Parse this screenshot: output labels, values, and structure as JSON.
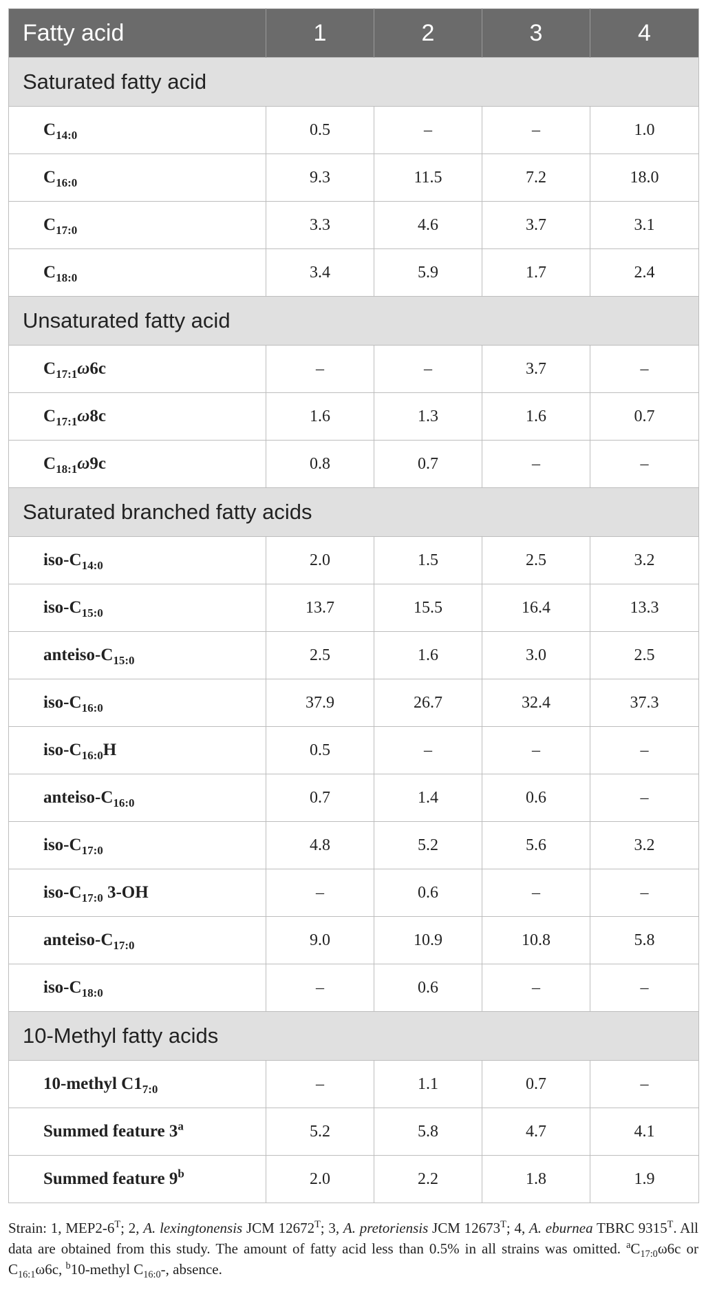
{
  "table": {
    "header": [
      "Fatty acid",
      "1",
      "2",
      "3",
      "4"
    ],
    "sections": [
      {
        "title": "Saturated fatty acid",
        "rows": [
          {
            "name": [
              {
                "t": "C"
              },
              {
                "t": "14:0",
                "s": "sub"
              }
            ],
            "values": [
              "0.5",
              "–",
              "–",
              "1.0"
            ]
          },
          {
            "name": [
              {
                "t": "C"
              },
              {
                "t": "16:0",
                "s": "sub"
              }
            ],
            "values": [
              "9.3",
              "11.5",
              "7.2",
              "18.0"
            ]
          },
          {
            "name": [
              {
                "t": "C"
              },
              {
                "t": "17:0",
                "s": "sub"
              }
            ],
            "values": [
              "3.3",
              "4.6",
              "3.7",
              "3.1"
            ]
          },
          {
            "name": [
              {
                "t": "C"
              },
              {
                "t": "18:0",
                "s": "sub"
              }
            ],
            "values": [
              "3.4",
              "5.9",
              "1.7",
              "2.4"
            ]
          }
        ]
      },
      {
        "title": "Unsaturated fatty acid",
        "rows": [
          {
            "name": [
              {
                "t": "C"
              },
              {
                "t": "17:1",
                "s": "sub"
              },
              {
                "t": "ω",
                "s": "i"
              },
              {
                "t": "6c"
              }
            ],
            "values": [
              "–",
              "–",
              "3.7",
              "–"
            ]
          },
          {
            "name": [
              {
                "t": "C"
              },
              {
                "t": "17:1",
                "s": "sub"
              },
              {
                "t": "ω",
                "s": "i"
              },
              {
                "t": "8c"
              }
            ],
            "values": [
              "1.6",
              "1.3",
              "1.6",
              "0.7"
            ]
          },
          {
            "name": [
              {
                "t": "C"
              },
              {
                "t": "18:1",
                "s": "sub"
              },
              {
                "t": "ω",
                "s": "i"
              },
              {
                "t": "9c"
              }
            ],
            "values": [
              "0.8",
              "0.7",
              "–",
              "–"
            ]
          }
        ]
      },
      {
        "title": "Saturated branched fatty acids",
        "rows": [
          {
            "name": [
              {
                "t": "iso-C"
              },
              {
                "t": "14:0",
                "s": "sub"
              }
            ],
            "values": [
              "2.0",
              "1.5",
              "2.5",
              "3.2"
            ]
          },
          {
            "name": [
              {
                "t": "iso-C"
              },
              {
                "t": "15:0",
                "s": "sub"
              }
            ],
            "values": [
              "13.7",
              "15.5",
              "16.4",
              "13.3"
            ]
          },
          {
            "name": [
              {
                "t": "anteiso-C"
              },
              {
                "t": "15:0",
                "s": "sub"
              }
            ],
            "values": [
              "2.5",
              "1.6",
              "3.0",
              "2.5"
            ]
          },
          {
            "name": [
              {
                "t": "iso-C"
              },
              {
                "t": "16:0",
                "s": "sub"
              }
            ],
            "values": [
              "37.9",
              "26.7",
              "32.4",
              "37.3"
            ]
          },
          {
            "name": [
              {
                "t": "iso-C"
              },
              {
                "t": "16:0",
                "s": "sub"
              },
              {
                "t": "H"
              }
            ],
            "values": [
              "0.5",
              "–",
              "–",
              "–"
            ]
          },
          {
            "name": [
              {
                "t": "anteiso-C"
              },
              {
                "t": "16:0",
                "s": "sub"
              }
            ],
            "values": [
              "0.7",
              "1.4",
              "0.6",
              "–"
            ]
          },
          {
            "name": [
              {
                "t": "iso-C"
              },
              {
                "t": "17:0",
                "s": "sub"
              }
            ],
            "values": [
              "4.8",
              "5.2",
              "5.6",
              "3.2"
            ]
          },
          {
            "name": [
              {
                "t": "iso-C"
              },
              {
                "t": "17:0",
                "s": "sub"
              },
              {
                "t": " 3-OH"
              }
            ],
            "values": [
              "–",
              "0.6",
              "–",
              "–"
            ]
          },
          {
            "name": [
              {
                "t": "anteiso-C"
              },
              {
                "t": "17:0",
                "s": "sub"
              }
            ],
            "values": [
              "9.0",
              "10.9",
              "10.8",
              "5.8"
            ]
          },
          {
            "name": [
              {
                "t": "iso-C"
              },
              {
                "t": "18:0",
                "s": "sub"
              }
            ],
            "values": [
              "–",
              "0.6",
              "–",
              "–"
            ]
          }
        ]
      },
      {
        "title": "10-Methyl fatty acids",
        "rows": [
          {
            "name": [
              {
                "t": "10-methyl C1"
              },
              {
                "t": "7:0",
                "s": "sub"
              }
            ],
            "values": [
              "–",
              "1.1",
              "0.7",
              "–"
            ]
          },
          {
            "name": [
              {
                "t": "Summed feature 3"
              },
              {
                "t": "a",
                "s": "sup"
              }
            ],
            "values": [
              "5.2",
              "5.8",
              "4.7",
              "4.1"
            ]
          },
          {
            "name": [
              {
                "t": "Summed feature 9"
              },
              {
                "t": "b",
                "s": "sup"
              }
            ],
            "values": [
              "2.0",
              "2.2",
              "1.8",
              "1.9"
            ]
          }
        ]
      }
    ]
  },
  "footnote": [
    {
      "t": "Strain: 1, MEP2-6"
    },
    {
      "t": "T",
      "s": "sup"
    },
    {
      "t": "; 2, "
    },
    {
      "t": "A. lexingtonensis",
      "s": "i"
    },
    {
      "t": " JCM 12672"
    },
    {
      "t": "T",
      "s": "sup"
    },
    {
      "t": "; 3, "
    },
    {
      "t": "A. pretoriensis",
      "s": "i"
    },
    {
      "t": " JCM 12673"
    },
    {
      "t": "T",
      "s": "sup"
    },
    {
      "t": "; 4, "
    },
    {
      "t": "A. eburnea",
      "s": "i"
    },
    {
      "t": " TBRC 9315"
    },
    {
      "t": "T",
      "s": "sup"
    },
    {
      "t": ". All data are obtained from this study. The amount of fatty acid less than 0.5% in all strains was omitted. "
    },
    {
      "t": "a",
      "s": "sup"
    },
    {
      "t": "C"
    },
    {
      "t": "17:0",
      "s": "sub"
    },
    {
      "t": "ω6c or C"
    },
    {
      "t": "16:1",
      "s": "sub"
    },
    {
      "t": "ω6c, "
    },
    {
      "t": "b",
      "s": "sup"
    },
    {
      "t": "10-methyl C"
    },
    {
      "t": "16:0",
      "s": "sub"
    },
    {
      "t": "-, absence."
    }
  ]
}
